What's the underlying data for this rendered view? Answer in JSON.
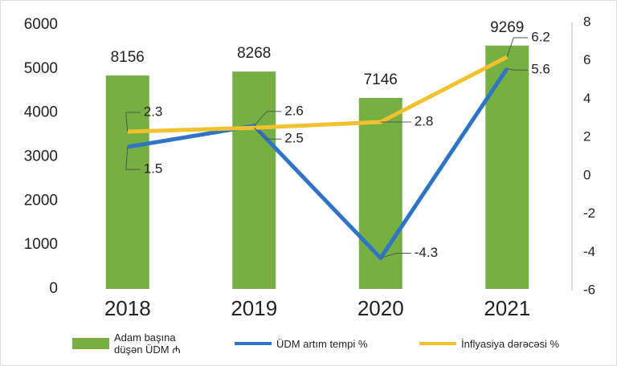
{
  "chart_data": {
    "type": "bar",
    "categories": [
      "2018",
      "2019",
      "2020",
      "2021"
    ],
    "series": [
      {
        "name": "Adam başına düşən ÜDM ₼",
        "type": "bar",
        "color": "#76b043",
        "values": [
          4850,
          4940,
          4340,
          5530
        ],
        "annotations": [
          "8156",
          "8268",
          "7146",
          "9269"
        ]
      },
      {
        "name": "ÜDM artım tempi %",
        "type": "line",
        "axis": "y2",
        "color": "#2e75c6",
        "values": [
          1.5,
          2.6,
          -4.3,
          5.6
        ]
      },
      {
        "name": "İnflyasiya dərəcəsi %",
        "type": "line",
        "axis": "y2",
        "color": "#f2c12e",
        "values": [
          2.3,
          2.5,
          2.8,
          6.2
        ]
      }
    ],
    "ylim": [
      0,
      6000
    ],
    "yticks": [
      0,
      1000,
      2000,
      3000,
      4000,
      5000,
      6000
    ],
    "y2lim": [
      -6,
      8
    ],
    "y2ticks": [
      -6,
      -4,
      -2,
      0,
      2,
      4,
      6,
      8
    ],
    "grid": false,
    "legend": "bottom"
  }
}
